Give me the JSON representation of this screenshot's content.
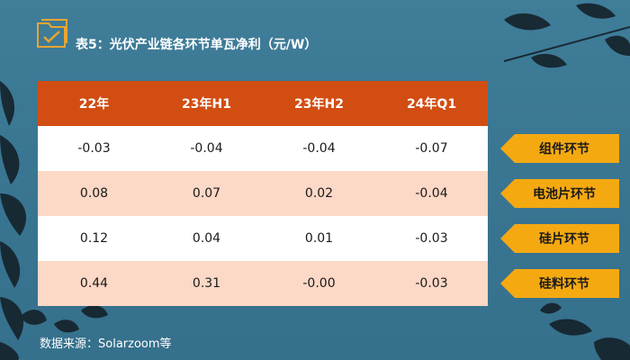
{
  "title": "表5：光伏产业链各环节单瓦净利（元/W）",
  "table": {
    "columns": [
      "22年",
      "23年H1",
      "23年H2",
      "24年Q1"
    ],
    "rows": [
      {
        "label": "组件环节",
        "values": [
          "-0.03",
          "-0.04",
          "-0.04",
          "-0.07"
        ]
      },
      {
        "label": "电池片环节",
        "values": [
          "0.08",
          "0.07",
          "0.02",
          "-0.04"
        ]
      },
      {
        "label": "硅片环节",
        "values": [
          "0.12",
          "0.04",
          "0.01",
          "-0.03"
        ]
      },
      {
        "label": "硅料环节",
        "values": [
          "0.44",
          "0.31",
          "-0.00",
          "-0.03"
        ]
      }
    ]
  },
  "source": "数据来源：Solarzoom等",
  "colors": {
    "header": "#d24d12",
    "row_alt": "#fcd8c6",
    "tag": "#f5a911",
    "logo": "#e8a531",
    "background": "#3a7692"
  },
  "icons": {
    "logo": "folder-check-logo-icon"
  }
}
